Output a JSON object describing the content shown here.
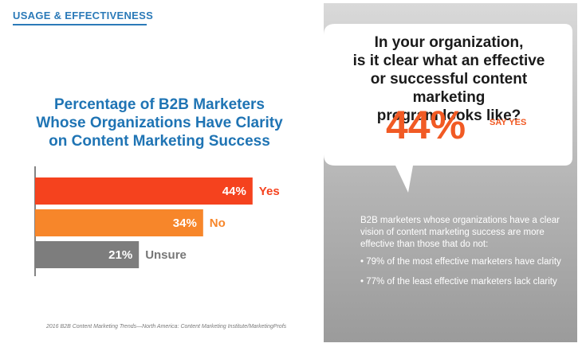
{
  "section_tag": "USAGE & EFFECTIVENESS",
  "question": {
    "line1": "In your organization,",
    "line2": "is it clear what an effective",
    "line3": "or successful content marketing",
    "line4": "program looks like?"
  },
  "highlight": {
    "value": "44%",
    "label": "SAY YES"
  },
  "description": "B2B marketers whose organizations have a clear vision of content marketing success are more effective than those that do not:",
  "bullets": [
    "• 79% of the most effective marketers have clarity",
    "• 77% of the least effective marketers lack clarity"
  ],
  "source": "2016 B2B Content Marketing Trends—North America: Content Marketing Institute/MarketingProfs",
  "colors": {
    "yes": "#f5421e",
    "no": "#f7862a",
    "unsure": "#7d7d7d",
    "title_blue": "#1f74b4",
    "accent_orange": "#f15a24"
  },
  "chart_data": {
    "type": "bar",
    "orientation": "horizontal",
    "title_lines": [
      "Percentage of B2B Marketers",
      "Whose Organizations Have Clarity",
      "on Content Marketing Success"
    ],
    "categories": [
      "Yes",
      "No",
      "Unsure"
    ],
    "values": [
      44,
      34,
      21
    ],
    "value_labels": [
      "44%",
      "34%",
      "21%"
    ],
    "colors": [
      "#f5421e",
      "#f7862a",
      "#7d7d7d"
    ],
    "xlim": [
      0,
      60
    ],
    "grid": false
  }
}
